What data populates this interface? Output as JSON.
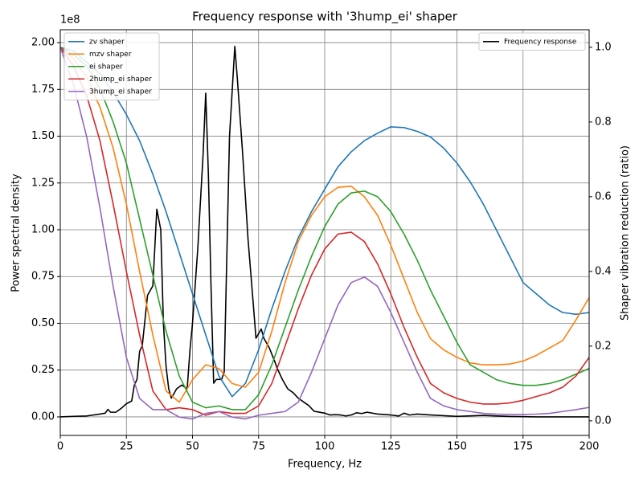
{
  "chart_data": {
    "type": "line",
    "title": "Frequency response with '3hump_ei' shaper",
    "xlabel": "Frequency, Hz",
    "ylabel": "Power spectral density",
    "y2label": "Shaper vibration reduction (ratio)",
    "y_offset_label": "1e8",
    "xlim": [
      0,
      200
    ],
    "xticks": [
      0,
      25,
      50,
      75,
      100,
      125,
      150,
      175,
      200
    ],
    "ylim": [
      -0.099,
      2.069
    ],
    "yticks": [
      {
        "value": 0,
        "label": "0.00"
      },
      {
        "value": 0.25,
        "label": "0.25"
      },
      {
        "value": 0.5,
        "label": "0.50"
      },
      {
        "value": 0.75,
        "label": "0.75"
      },
      {
        "value": 1,
        "label": "1.00"
      },
      {
        "value": 1.25,
        "label": "1.25"
      },
      {
        "value": 1.5,
        "label": "1.50"
      },
      {
        "value": 1.75,
        "label": "1.75"
      },
      {
        "value": 2,
        "label": "2.00"
      }
    ],
    "y2lim": [
      -0.039,
      1.047
    ],
    "y2ticks": [
      {
        "value": 0,
        "label": "0.0"
      },
      {
        "value": 0.2,
        "label": "0.2"
      },
      {
        "value": 0.4,
        "label": "0.4"
      },
      {
        "value": 0.6,
        "label": "0.6"
      },
      {
        "value": 0.8,
        "label": "0.8"
      },
      {
        "value": 1,
        "label": "1.0"
      }
    ],
    "grid": true,
    "legend": {
      "y": "upper right",
      "y2": "upper left"
    },
    "series": [
      {
        "name": "Frequency response",
        "color": "#000000",
        "axis": "y",
        "x": [
          0,
          5,
          10,
          15,
          17,
          18,
          19,
          21,
          23,
          25,
          27,
          28,
          29,
          30,
          31,
          33,
          35,
          36.5,
          38,
          39,
          40,
          41,
          42,
          44,
          46,
          47,
          48,
          49,
          50,
          52,
          54,
          55,
          56,
          57,
          58,
          59,
          61,
          62,
          64,
          66,
          67,
          69,
          71,
          73,
          74,
          76,
          77,
          79,
          81,
          82,
          84,
          86,
          88,
          90,
          92,
          94,
          96,
          100,
          102,
          104,
          106,
          108,
          110,
          112,
          114,
          116,
          120,
          125,
          128,
          130,
          132,
          135,
          140,
          150,
          160,
          170,
          180,
          200
        ],
        "values": [
          0.0,
          0.003,
          0.005,
          0.015,
          0.02,
          0.04,
          0.025,
          0.025,
          0.045,
          0.07,
          0.085,
          0.17,
          0.2,
          0.35,
          0.38,
          0.65,
          0.7,
          1.11,
          1.0,
          0.5,
          0.27,
          0.15,
          0.1,
          0.15,
          0.17,
          0.16,
          0.15,
          0.35,
          0.5,
          0.9,
          1.4,
          1.73,
          1.3,
          0.7,
          0.18,
          0.2,
          0.2,
          0.24,
          1.5,
          1.98,
          1.8,
          1.4,
          0.95,
          0.6,
          0.42,
          0.47,
          0.42,
          0.37,
          0.3,
          0.26,
          0.2,
          0.15,
          0.13,
          0.1,
          0.08,
          0.06,
          0.03,
          0.02,
          0.01,
          0.012,
          0.01,
          0.005,
          0.01,
          0.022,
          0.018,
          0.025,
          0.015,
          0.01,
          0.005,
          0.02,
          0.01,
          0.015,
          0.01,
          0.003,
          0.008,
          0.002,
          0.0,
          0.0
        ]
      },
      {
        "name": "zv shaper",
        "color": "#1f77b4",
        "axis": "y2",
        "x": [
          0,
          5,
          10,
          15,
          20,
          25,
          30,
          35,
          40,
          45,
          50,
          55,
          60,
          65,
          70,
          75,
          80,
          85,
          90,
          95,
          100,
          105,
          110,
          115,
          120,
          125,
          130,
          135,
          140,
          145,
          150,
          155,
          160,
          165,
          170,
          175,
          180,
          185,
          190,
          195,
          200
        ],
        "values": [
          1.0,
          0.99,
          0.96,
          0.93,
          0.88,
          0.82,
          0.75,
          0.66,
          0.56,
          0.45,
          0.34,
          0.23,
          0.12,
          0.065,
          0.1,
          0.19,
          0.3,
          0.4,
          0.49,
          0.56,
          0.62,
          0.68,
          0.72,
          0.75,
          0.77,
          0.787,
          0.785,
          0.775,
          0.76,
          0.73,
          0.69,
          0.64,
          0.58,
          0.51,
          0.44,
          0.37,
          0.34,
          0.31,
          0.29,
          0.285,
          0.29
        ]
      },
      {
        "name": "mzv shaper",
        "color": "#ff7f0e",
        "axis": "y2",
        "x": [
          0,
          5,
          10,
          15,
          20,
          25,
          30,
          35,
          40,
          45,
          50,
          55,
          60,
          65,
          70,
          75,
          80,
          85,
          90,
          95,
          100,
          105,
          110,
          115,
          120,
          125,
          130,
          135,
          140,
          145,
          150,
          155,
          160,
          165,
          170,
          175,
          180,
          185,
          190,
          195,
          200
        ],
        "values": [
          1.0,
          0.97,
          0.92,
          0.84,
          0.73,
          0.58,
          0.4,
          0.23,
          0.08,
          0.05,
          0.11,
          0.15,
          0.14,
          0.1,
          0.09,
          0.13,
          0.24,
          0.37,
          0.48,
          0.55,
          0.6,
          0.625,
          0.628,
          0.6,
          0.55,
          0.47,
          0.38,
          0.29,
          0.22,
          0.19,
          0.17,
          0.155,
          0.15,
          0.15,
          0.152,
          0.16,
          0.175,
          0.195,
          0.215,
          0.27,
          0.33
        ]
      },
      {
        "name": "ei shaper",
        "color": "#2ca02c",
        "axis": "y2",
        "x": [
          0,
          5,
          10,
          15,
          20,
          25,
          30,
          35,
          40,
          45,
          50,
          55,
          60,
          65,
          70,
          75,
          80,
          85,
          90,
          95,
          100,
          105,
          110,
          115,
          120,
          125,
          130,
          135,
          140,
          145,
          150,
          155,
          160,
          165,
          170,
          175,
          180,
          185,
          190,
          195,
          200
        ],
        "values": [
          1.0,
          0.98,
          0.95,
          0.89,
          0.8,
          0.69,
          0.54,
          0.39,
          0.24,
          0.12,
          0.05,
          0.035,
          0.04,
          0.03,
          0.03,
          0.07,
          0.15,
          0.25,
          0.35,
          0.44,
          0.52,
          0.58,
          0.61,
          0.615,
          0.6,
          0.56,
          0.5,
          0.43,
          0.35,
          0.28,
          0.21,
          0.15,
          0.13,
          0.11,
          0.1,
          0.095,
          0.095,
          0.1,
          0.11,
          0.125,
          0.14
        ]
      },
      {
        "name": "2hump_ei shaper",
        "color": "#d62728",
        "axis": "y2",
        "x": [
          0,
          5,
          10,
          15,
          20,
          25,
          30,
          35,
          40,
          45,
          50,
          55,
          60,
          65,
          70,
          75,
          80,
          85,
          90,
          95,
          100,
          105,
          110,
          115,
          120,
          125,
          130,
          135,
          140,
          145,
          150,
          155,
          160,
          165,
          170,
          175,
          180,
          185,
          190,
          195,
          200
        ],
        "values": [
          1.0,
          0.95,
          0.87,
          0.75,
          0.58,
          0.4,
          0.23,
          0.08,
          0.03,
          0.035,
          0.03,
          0.015,
          0.025,
          0.02,
          0.02,
          0.04,
          0.1,
          0.2,
          0.3,
          0.39,
          0.46,
          0.5,
          0.505,
          0.48,
          0.42,
          0.34,
          0.25,
          0.17,
          0.1,
          0.075,
          0.06,
          0.05,
          0.045,
          0.045,
          0.048,
          0.055,
          0.065,
          0.075,
          0.09,
          0.12,
          0.17
        ]
      },
      {
        "name": "3hump_ei shaper",
        "color": "#9467bd",
        "axis": "y2",
        "x": [
          0,
          5,
          10,
          15,
          20,
          25,
          30,
          35,
          40,
          45,
          50,
          55,
          60,
          65,
          70,
          75,
          80,
          85,
          90,
          95,
          100,
          105,
          110,
          115,
          120,
          125,
          130,
          135,
          140,
          145,
          150,
          155,
          160,
          165,
          170,
          175,
          180,
          185,
          190,
          195,
          200
        ],
        "values": [
          1.0,
          0.9,
          0.76,
          0.57,
          0.36,
          0.17,
          0.06,
          0.03,
          0.03,
          0.01,
          0.005,
          0.02,
          0.025,
          0.01,
          0.005,
          0.015,
          0.02,
          0.025,
          0.05,
          0.13,
          0.22,
          0.31,
          0.37,
          0.385,
          0.36,
          0.29,
          0.21,
          0.13,
          0.06,
          0.04,
          0.03,
          0.025,
          0.02,
          0.018,
          0.017,
          0.017,
          0.018,
          0.02,
          0.025,
          0.03,
          0.036
        ]
      }
    ]
  }
}
